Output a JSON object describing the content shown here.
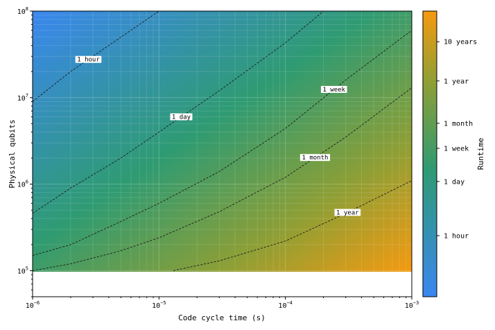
{
  "chart_data": {
    "type": "heatmap",
    "title": "",
    "xlabel": "Code cycle time (s)",
    "ylabel": "Physical qubits",
    "x_scale": "log",
    "y_scale": "log",
    "xlim": [
      1e-06,
      0.001
    ],
    "ylim": [
      50000.0,
      100000000.0
    ],
    "data_ylim": [
      100000.0,
      100000000.0
    ],
    "x_ticks": [
      {
        "value": 1e-06,
        "base": "10",
        "exp": "−6"
      },
      {
        "value": 1e-05,
        "base": "10",
        "exp": "−5"
      },
      {
        "value": 0.0001,
        "base": "10",
        "exp": "−4"
      },
      {
        "value": 0.001,
        "base": "10",
        "exp": "−3"
      }
    ],
    "y_ticks": [
      {
        "value": 100000.0,
        "base": "10",
        "exp": "5"
      },
      {
        "value": 1000000.0,
        "base": "10",
        "exp": "6"
      },
      {
        "value": 10000000.0,
        "base": "10",
        "exp": "7"
      },
      {
        "value": 100000000.0,
        "base": "10",
        "exp": "8"
      }
    ],
    "grid": true,
    "colorbar": {
      "label": "Runtime",
      "colors": [
        "#3a87f0",
        "#2f9b72",
        "#8e9f35",
        "#f59a10"
      ],
      "ticks": [
        "10 years",
        "1 year",
        "1 month",
        "1 week",
        "1 day",
        "1 hour"
      ]
    },
    "contours": [
      {
        "label": "1 hour",
        "points": [
          [
            1e-06,
            9000000.0
          ],
          [
            2e-06,
            20000000.0
          ],
          [
            5e-06,
            50000000.0
          ],
          [
            1e-05,
            100000000.0
          ]
        ]
      },
      {
        "label": "1 day",
        "points": [
          [
            1e-06,
            460000.0
          ],
          [
            2e-06,
            900000.0
          ],
          [
            5e-06,
            2000000.0
          ],
          [
            1e-05,
            4000000.0
          ],
          [
            3e-05,
            12000000.0
          ],
          [
            0.0001,
            43000000.0
          ],
          [
            0.0002,
            100000000.0
          ]
        ]
      },
      {
        "label": "1 week",
        "points": [
          [
            1e-06,
            150000.0
          ],
          [
            2e-06,
            200000.0
          ],
          [
            5e-06,
            370000.0
          ],
          [
            1e-05,
            600000.0
          ],
          [
            3e-05,
            1400000.0
          ],
          [
            0.0001,
            4400000.0
          ],
          [
            0.0003,
            16000000.0
          ],
          [
            0.001,
            60000000.0
          ]
        ]
      },
      {
        "label": "1 month",
        "points": [
          [
            1e-06,
            100000.0
          ],
          [
            2e-06,
            120000.0
          ],
          [
            5e-06,
            170000.0
          ],
          [
            1e-05,
            240000.0
          ],
          [
            3e-05,
            480000.0
          ],
          [
            0.0001,
            1200000.0
          ],
          [
            0.0003,
            3500000.0
          ],
          [
            0.001,
            13000000.0
          ]
        ]
      },
      {
        "label": "1 year",
        "points": [
          [
            1.3e-05,
            100000.0
          ],
          [
            3e-05,
            130000.0
          ],
          [
            0.0001,
            220000.0
          ],
          [
            0.0003,
            460000.0
          ],
          [
            0.001,
            1100000.0
          ]
        ]
      }
    ]
  }
}
